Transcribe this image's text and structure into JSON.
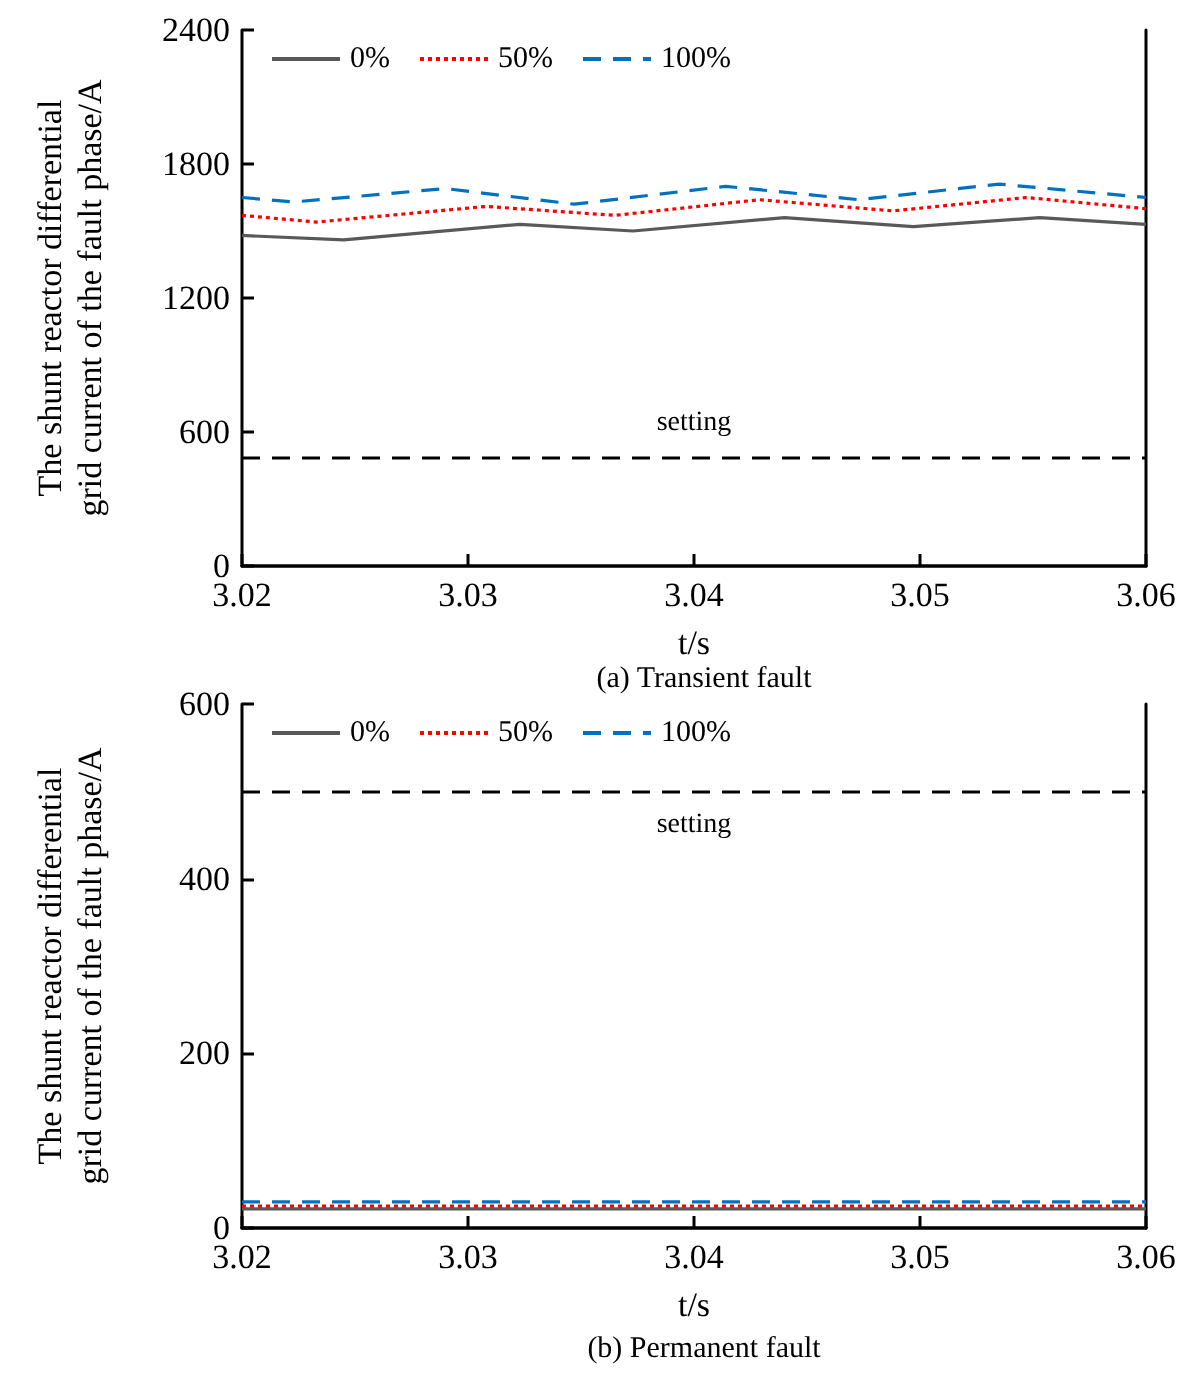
{
  "chart_data": [
    {
      "type": "line",
      "title": "(a) Transient fault",
      "xlabel": "t/s",
      "ylabel": "The shunt reactor differential grid current of the fault phase/A",
      "series": [
        {
          "name": "0%",
          "color": "#595959",
          "line_style": "solid",
          "x": [
            3.02,
            3.0245,
            3.0323,
            3.0373,
            3.044,
            3.0497,
            3.0553,
            3.06
          ],
          "values": [
            1480,
            1460,
            1530,
            1500,
            1560,
            1520,
            1560,
            1530
          ]
        },
        {
          "name": "50%",
          "color": "#ff0000",
          "line_style": "dotted",
          "x": [
            3.02,
            3.0233,
            3.0308,
            3.0365,
            3.0429,
            3.0488,
            3.0547,
            3.06
          ],
          "values": [
            1570,
            1540,
            1610,
            1570,
            1640,
            1590,
            1650,
            1600
          ]
        },
        {
          "name": "100%",
          "color": "#0070c0",
          "line_style": "dashed",
          "x": [
            3.02,
            3.0223,
            3.029,
            3.0347,
            3.0414,
            3.0473,
            3.0535,
            3.06
          ],
          "values": [
            1650,
            1630,
            1690,
            1620,
            1700,
            1640,
            1710,
            1650
          ]
        }
      ],
      "xlim": [
        3.02,
        3.06
      ],
      "xticks": [
        3.02,
        3.03,
        3.04,
        3.05,
        3.06
      ],
      "ylim": [
        0,
        2400
      ],
      "yticks": [
        0,
        600,
        1200,
        1800,
        2400
      ],
      "ref_lines": [
        {
          "axis": "y",
          "value": 490,
          "label": "setting",
          "color": "#000000",
          "line_style": "dashed"
        }
      ],
      "grid": false,
      "legend": "top left"
    },
    {
      "type": "line",
      "title": "(b) Permanent fault",
      "xlabel": "t/s",
      "ylabel": "The shunt reactor differential grid current of the fault phase/A",
      "series": [
        {
          "name": "0%",
          "color": "#595959",
          "line_style": "solid",
          "x": [
            3.02,
            3.04,
            3.06
          ],
          "values": [
            22,
            22,
            22
          ]
        },
        {
          "name": "50%",
          "color": "#ff0000",
          "line_style": "dotted",
          "x": [
            3.02,
            3.04,
            3.06
          ],
          "values": [
            25,
            25,
            25
          ]
        },
        {
          "name": "100%",
          "color": "#0070c0",
          "line_style": "dashed",
          "x": [
            3.02,
            3.04,
            3.06
          ],
          "values": [
            30,
            30,
            30
          ]
        }
      ],
      "xlim": [
        3.02,
        3.06
      ],
      "xticks": [
        3.02,
        3.03,
        3.04,
        3.05,
        3.06
      ],
      "ylim": [
        0,
        600
      ],
      "yticks": [
        0,
        200,
        400,
        600
      ],
      "ref_lines": [
        {
          "axis": "y",
          "value": 500,
          "label": "setting",
          "color": "#000000",
          "line_style": "dashed"
        }
      ],
      "grid": false,
      "legend": "top left"
    }
  ]
}
